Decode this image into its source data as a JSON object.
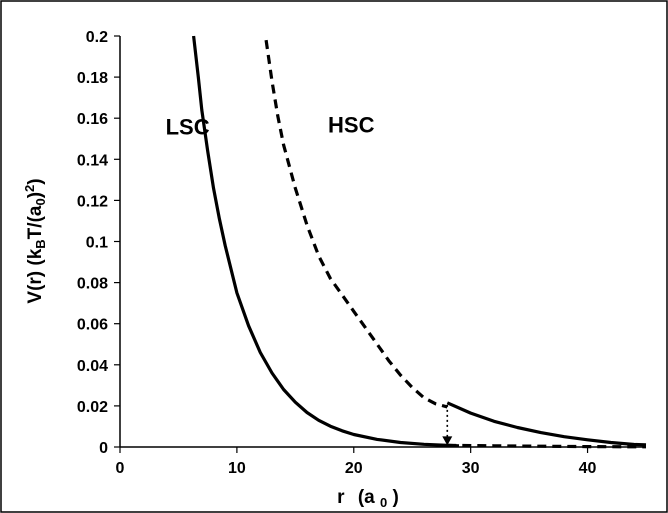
{
  "chart_data": {
    "type": "line",
    "title": "",
    "xlabel": {
      "main": "r",
      "paren_open": "(a",
      "sub": "0",
      "paren_close": ")"
    },
    "ylabel": {
      "part1": "V(r)  (k",
      "sub_b": "B",
      "part2": "T/(a",
      "sub_0": "0",
      "part3": ")",
      "sup_2": "2",
      "part4": ")"
    },
    "xlim": [
      0,
      45
    ],
    "ylim": [
      0,
      0.2
    ],
    "x_ticks": [
      0,
      10,
      20,
      30,
      40
    ],
    "y_ticks": [
      0,
      0.02,
      0.04,
      0.06,
      0.08,
      0.1,
      0.12,
      0.14,
      0.16,
      0.18,
      0.2
    ],
    "x_tick_labels": [
      "0",
      "10",
      "20",
      "30",
      "40"
    ],
    "y_tick_labels": [
      "0",
      "0.02",
      "0.04",
      "0.06",
      "0.08",
      "0.1",
      "0.12",
      "0.14",
      "0.16",
      "0.18",
      "0.2"
    ],
    "grid": false,
    "series": [
      {
        "name": "LSC",
        "style": "solid",
        "color": "#000000",
        "x": [
          6.3,
          6.7,
          7,
          7.5,
          8,
          8.5,
          9,
          10,
          11,
          12,
          13,
          14,
          15,
          16,
          17,
          18,
          19,
          20,
          22,
          24,
          26,
          28,
          29
        ],
        "y": [
          0.2,
          0.18,
          0.164,
          0.144,
          0.126,
          0.111,
          0.098,
          0.075,
          0.059,
          0.046,
          0.036,
          0.028,
          0.0218,
          0.0168,
          0.013,
          0.0101,
          0.0079,
          0.0061,
          0.0037,
          0.0022,
          0.0013,
          0.0008,
          0.0006
        ]
      },
      {
        "name": "HSC",
        "style": "dashed",
        "color": "#000000",
        "x": [
          12.5,
          13,
          13.5,
          14,
          15,
          16,
          17,
          18,
          19,
          20,
          21,
          22,
          23,
          24,
          25,
          26,
          27,
          28
        ],
        "y": [
          0.198,
          0.178,
          0.161,
          0.147,
          0.126,
          0.108,
          0.093,
          0.082,
          0.074,
          0.066,
          0.058,
          0.05,
          0.042,
          0.035,
          0.029,
          0.024,
          0.021,
          0.0195
        ]
      },
      {
        "name": "",
        "style": "solid",
        "color": "#000000",
        "x": [
          28,
          30,
          32,
          34,
          36,
          38,
          40,
          42,
          44,
          45
        ],
        "y": [
          0.0215,
          0.0165,
          0.0125,
          0.0095,
          0.007,
          0.005,
          0.0035,
          0.0022,
          0.0012,
          0.001
        ]
      },
      {
        "name": "",
        "style": "dashed",
        "color": "#000000",
        "x": [
          28,
          32,
          36,
          40,
          45
        ],
        "y": [
          0.0008,
          0.0006,
          0.0004,
          0.0002,
          0.0001
        ]
      }
    ],
    "annotations": [
      {
        "type": "dotted-arrow",
        "x": 28,
        "y_from": 0.0215,
        "y_to": 0.0008
      }
    ],
    "series_labels": [
      {
        "text": "LSC",
        "x": 3.9,
        "y": 0.152
      },
      {
        "text": "HSC",
        "x": 17.8,
        "y": 0.153
      }
    ]
  }
}
